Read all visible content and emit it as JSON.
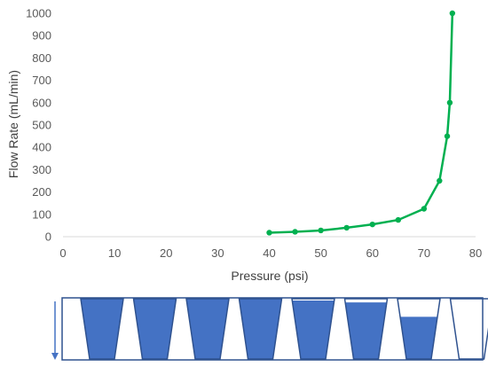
{
  "chart_data": {
    "type": "scatter",
    "xlabel": "Pressure (psi)",
    "ylabel": "Flow Rate (mL/min)",
    "xlim": [
      0,
      80
    ],
    "ylim": [
      0,
      1000
    ],
    "xticks": [
      0,
      10,
      20,
      30,
      40,
      50,
      60,
      70,
      80
    ],
    "yticks": [
      0,
      100,
      200,
      300,
      400,
      500,
      600,
      700,
      800,
      900,
      1000
    ],
    "grid": false,
    "legend": "none",
    "series": [
      {
        "color": "#00b050",
        "x": [
          40,
          45,
          50,
          55,
          60,
          65,
          70,
          73,
          74.5,
          75,
          75.5
        ],
        "y": [
          18,
          22,
          28,
          40,
          55,
          75,
          125,
          250,
          450,
          600,
          1000
        ],
        "line": true,
        "markers": true
      }
    ]
  },
  "schematic": {
    "fill_color": "#4472c4",
    "outline_color": "#2f528f",
    "arrow": "down",
    "blocks": [
      {
        "shape": "cup",
        "fill_fraction": 1.0
      },
      {
        "shape": "cup",
        "fill_fraction": 1.0
      },
      {
        "shape": "cup",
        "fill_fraction": 1.0
      },
      {
        "shape": "cup",
        "fill_fraction": 1.0
      },
      {
        "shape": "cup",
        "fill_fraction": 0.97
      },
      {
        "shape": "cup",
        "fill_fraction": 0.94
      },
      {
        "shape": "cup",
        "fill_fraction": 0.7
      },
      {
        "shape": "cup",
        "fill_fraction": 0.0
      }
    ]
  }
}
